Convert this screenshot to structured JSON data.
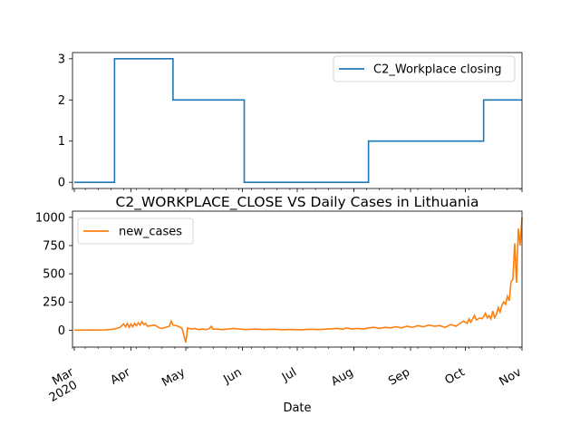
{
  "colors": {
    "series1": "#1f77b4",
    "series2": "#ff7f0e",
    "axis": "#000000"
  },
  "chart_data": [
    {
      "type": "line",
      "title": "",
      "xlabel": "",
      "ylabel": "",
      "x_range": [
        "2020-02-29",
        "2020-11-01"
      ],
      "ylim": [
        -0.15,
        3.15
      ],
      "yticks": [
        0,
        1,
        2,
        3
      ],
      "grid": false,
      "legend_position": "upper right",
      "series": [
        {
          "name": "C2_Workplace closing",
          "color": "#1f77b4",
          "step": true,
          "points": [
            [
              "2020-03-01",
              0
            ],
            [
              "2020-03-23",
              0
            ],
            [
              "2020-03-23",
              3
            ],
            [
              "2020-04-24",
              3
            ],
            [
              "2020-04-24",
              2
            ],
            [
              "2020-06-02",
              2
            ],
            [
              "2020-06-02",
              0
            ],
            [
              "2020-08-09",
              0
            ],
            [
              "2020-08-09",
              1
            ],
            [
              "2020-10-11",
              1
            ],
            [
              "2020-10-11",
              2
            ],
            [
              "2020-11-01",
              2
            ]
          ]
        }
      ]
    },
    {
      "type": "line",
      "title": "C2_WORKPLACE_CLOSE VS Daily Cases in Lithuania",
      "xlabel": "Date",
      "ylabel": "",
      "x_range": [
        "2020-02-29",
        "2020-11-01"
      ],
      "ylim": [
        -150,
        1055
      ],
      "yticks": [
        0,
        250,
        500,
        750,
        1000
      ],
      "xticks": [
        {
          "date": "2020-03-01",
          "label": "Mar",
          "year": "2020"
        },
        {
          "date": "2020-04-01",
          "label": "Apr"
        },
        {
          "date": "2020-05-01",
          "label": "May"
        },
        {
          "date": "2020-06-01",
          "label": "Jun"
        },
        {
          "date": "2020-07-01",
          "label": "Jul"
        },
        {
          "date": "2020-08-01",
          "label": "Aug"
        },
        {
          "date": "2020-09-01",
          "label": "Sep"
        },
        {
          "date": "2020-10-01",
          "label": "Oct"
        },
        {
          "date": "2020-11-01",
          "label": "Nov"
        }
      ],
      "grid": false,
      "legend_position": "upper left",
      "series": [
        {
          "name": "new_cases",
          "color": "#ff7f0e",
          "points": [
            [
              "2020-03-01",
              0
            ],
            [
              "2020-03-10",
              1
            ],
            [
              "2020-03-18",
              2
            ],
            [
              "2020-03-22",
              8
            ],
            [
              "2020-03-24",
              15
            ],
            [
              "2020-03-26",
              25
            ],
            [
              "2020-03-28",
              55
            ],
            [
              "2020-03-29",
              30
            ],
            [
              "2020-03-30",
              60
            ],
            [
              "2020-03-31",
              25
            ],
            [
              "2020-04-01",
              55
            ],
            [
              "2020-04-02",
              30
            ],
            [
              "2020-04-03",
              60
            ],
            [
              "2020-04-04",
              40
            ],
            [
              "2020-04-05",
              65
            ],
            [
              "2020-04-06",
              45
            ],
            [
              "2020-04-07",
              75
            ],
            [
              "2020-04-08",
              50
            ],
            [
              "2020-04-09",
              60
            ],
            [
              "2020-04-10",
              35
            ],
            [
              "2020-04-12",
              40
            ],
            [
              "2020-04-14",
              45
            ],
            [
              "2020-04-16",
              25
            ],
            [
              "2020-04-18",
              15
            ],
            [
              "2020-04-20",
              25
            ],
            [
              "2020-04-22",
              35
            ],
            [
              "2020-04-23",
              80
            ],
            [
              "2020-04-24",
              45
            ],
            [
              "2020-04-26",
              40
            ],
            [
              "2020-04-28",
              25
            ],
            [
              "2020-04-29",
              15
            ],
            [
              "2020-04-30",
              -50
            ],
            [
              "2020-05-01",
              -110
            ],
            [
              "2020-05-02",
              20
            ],
            [
              "2020-05-04",
              10
            ],
            [
              "2020-05-06",
              15
            ],
            [
              "2020-05-08",
              5
            ],
            [
              "2020-05-10",
              10
            ],
            [
              "2020-05-12",
              5
            ],
            [
              "2020-05-14",
              15
            ],
            [
              "2020-05-15",
              35
            ],
            [
              "2020-05-16",
              8
            ],
            [
              "2020-05-18",
              10
            ],
            [
              "2020-05-21",
              5
            ],
            [
              "2020-05-24",
              10
            ],
            [
              "2020-05-27",
              15
            ],
            [
              "2020-05-30",
              10
            ],
            [
              "2020-06-03",
              5
            ],
            [
              "2020-06-08",
              10
            ],
            [
              "2020-06-13",
              5
            ],
            [
              "2020-06-18",
              8
            ],
            [
              "2020-06-23",
              4
            ],
            [
              "2020-06-28",
              6
            ],
            [
              "2020-07-03",
              3
            ],
            [
              "2020-07-08",
              8
            ],
            [
              "2020-07-13",
              5
            ],
            [
              "2020-07-18",
              10
            ],
            [
              "2020-07-23",
              15
            ],
            [
              "2020-07-26",
              8
            ],
            [
              "2020-07-28",
              20
            ],
            [
              "2020-07-31",
              10
            ],
            [
              "2020-08-03",
              15
            ],
            [
              "2020-08-06",
              10
            ],
            [
              "2020-08-09",
              20
            ],
            [
              "2020-08-12",
              25
            ],
            [
              "2020-08-15",
              15
            ],
            [
              "2020-08-18",
              25
            ],
            [
              "2020-08-21",
              20
            ],
            [
              "2020-08-24",
              30
            ],
            [
              "2020-08-27",
              20
            ],
            [
              "2020-08-30",
              35
            ],
            [
              "2020-09-02",
              25
            ],
            [
              "2020-09-05",
              40
            ],
            [
              "2020-09-08",
              30
            ],
            [
              "2020-09-11",
              45
            ],
            [
              "2020-09-14",
              35
            ],
            [
              "2020-09-17",
              40
            ],
            [
              "2020-09-20",
              25
            ],
            [
              "2020-09-23",
              50
            ],
            [
              "2020-09-26",
              35
            ],
            [
              "2020-09-28",
              60
            ],
            [
              "2020-09-30",
              80
            ],
            [
              "2020-10-02",
              60
            ],
            [
              "2020-10-03",
              100
            ],
            [
              "2020-10-04",
              70
            ],
            [
              "2020-10-06",
              130
            ],
            [
              "2020-10-07",
              90
            ],
            [
              "2020-10-09",
              110
            ],
            [
              "2020-10-10",
              100
            ],
            [
              "2020-10-11",
              120
            ],
            [
              "2020-10-12",
              150
            ],
            [
              "2020-10-13",
              110
            ],
            [
              "2020-10-14",
              130
            ],
            [
              "2020-10-15",
              100
            ],
            [
              "2020-10-16",
              170
            ],
            [
              "2020-10-17",
              110
            ],
            [
              "2020-10-18",
              140
            ],
            [
              "2020-10-19",
              200
            ],
            [
              "2020-10-20",
              160
            ],
            [
              "2020-10-21",
              220
            ],
            [
              "2020-10-22",
              250
            ],
            [
              "2020-10-23",
              230
            ],
            [
              "2020-10-24",
              300
            ],
            [
              "2020-10-25",
              260
            ],
            [
              "2020-10-26",
              430
            ],
            [
              "2020-10-27",
              450
            ],
            [
              "2020-10-28",
              770
            ],
            [
              "2020-10-29",
              420
            ],
            [
              "2020-10-30",
              900
            ],
            [
              "2020-10-31",
              750
            ],
            [
              "2020-11-01",
              1000
            ]
          ]
        }
      ]
    }
  ]
}
